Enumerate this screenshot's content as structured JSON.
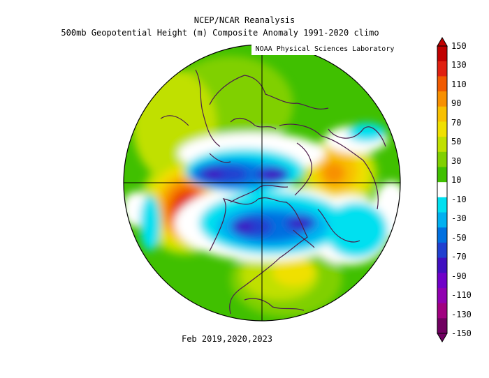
{
  "header": {
    "line1": "NCEP/NCAR Reanalysis",
    "line2": "500mb Geopotential Height (m) Composite Anomaly 1991-2020 climo",
    "credit": "NOAA Physical Sciences Laboratory"
  },
  "footer": {
    "period": "Feb 2019,2020,2023"
  },
  "colorbar": {
    "labels": [
      "150",
      "130",
      "110",
      "90",
      "70",
      "50",
      "30",
      "10",
      "-10",
      "-30",
      "-50",
      "-70",
      "-90",
      "-110",
      "-130",
      "-150"
    ],
    "colors": [
      "#c00000",
      "#e02010",
      "#f05a00",
      "#f89000",
      "#f8c000",
      "#f0e000",
      "#c0e000",
      "#80d000",
      "#40c000",
      "#ffffff",
      "#00e0f0",
      "#00b0f0",
      "#0070e0",
      "#2040d0",
      "#4010c0",
      "#7000c8",
      "#9000b0",
      "#a00080",
      "#700060"
    ]
  },
  "map": {
    "projection": "north-polar-stereographic",
    "colors": {
      "background": "#40c000",
      "border": "#4b1e4b",
      "warm1": "#80d000",
      "warm2": "#c0e000",
      "warm3": "#f0e000",
      "warm4": "#f8c000",
      "warm5": "#f89000",
      "warm6": "#f05a00",
      "warm7": "#e02010",
      "warm8": "#c00000",
      "neutral": "#ffffff",
      "cool1": "#00e0f0",
      "cool2": "#00b0f0",
      "cool3": "#0070e0",
      "cool4": "#2040d0",
      "cool5": "#4010c0",
      "cool6": "#7000c8"
    }
  }
}
